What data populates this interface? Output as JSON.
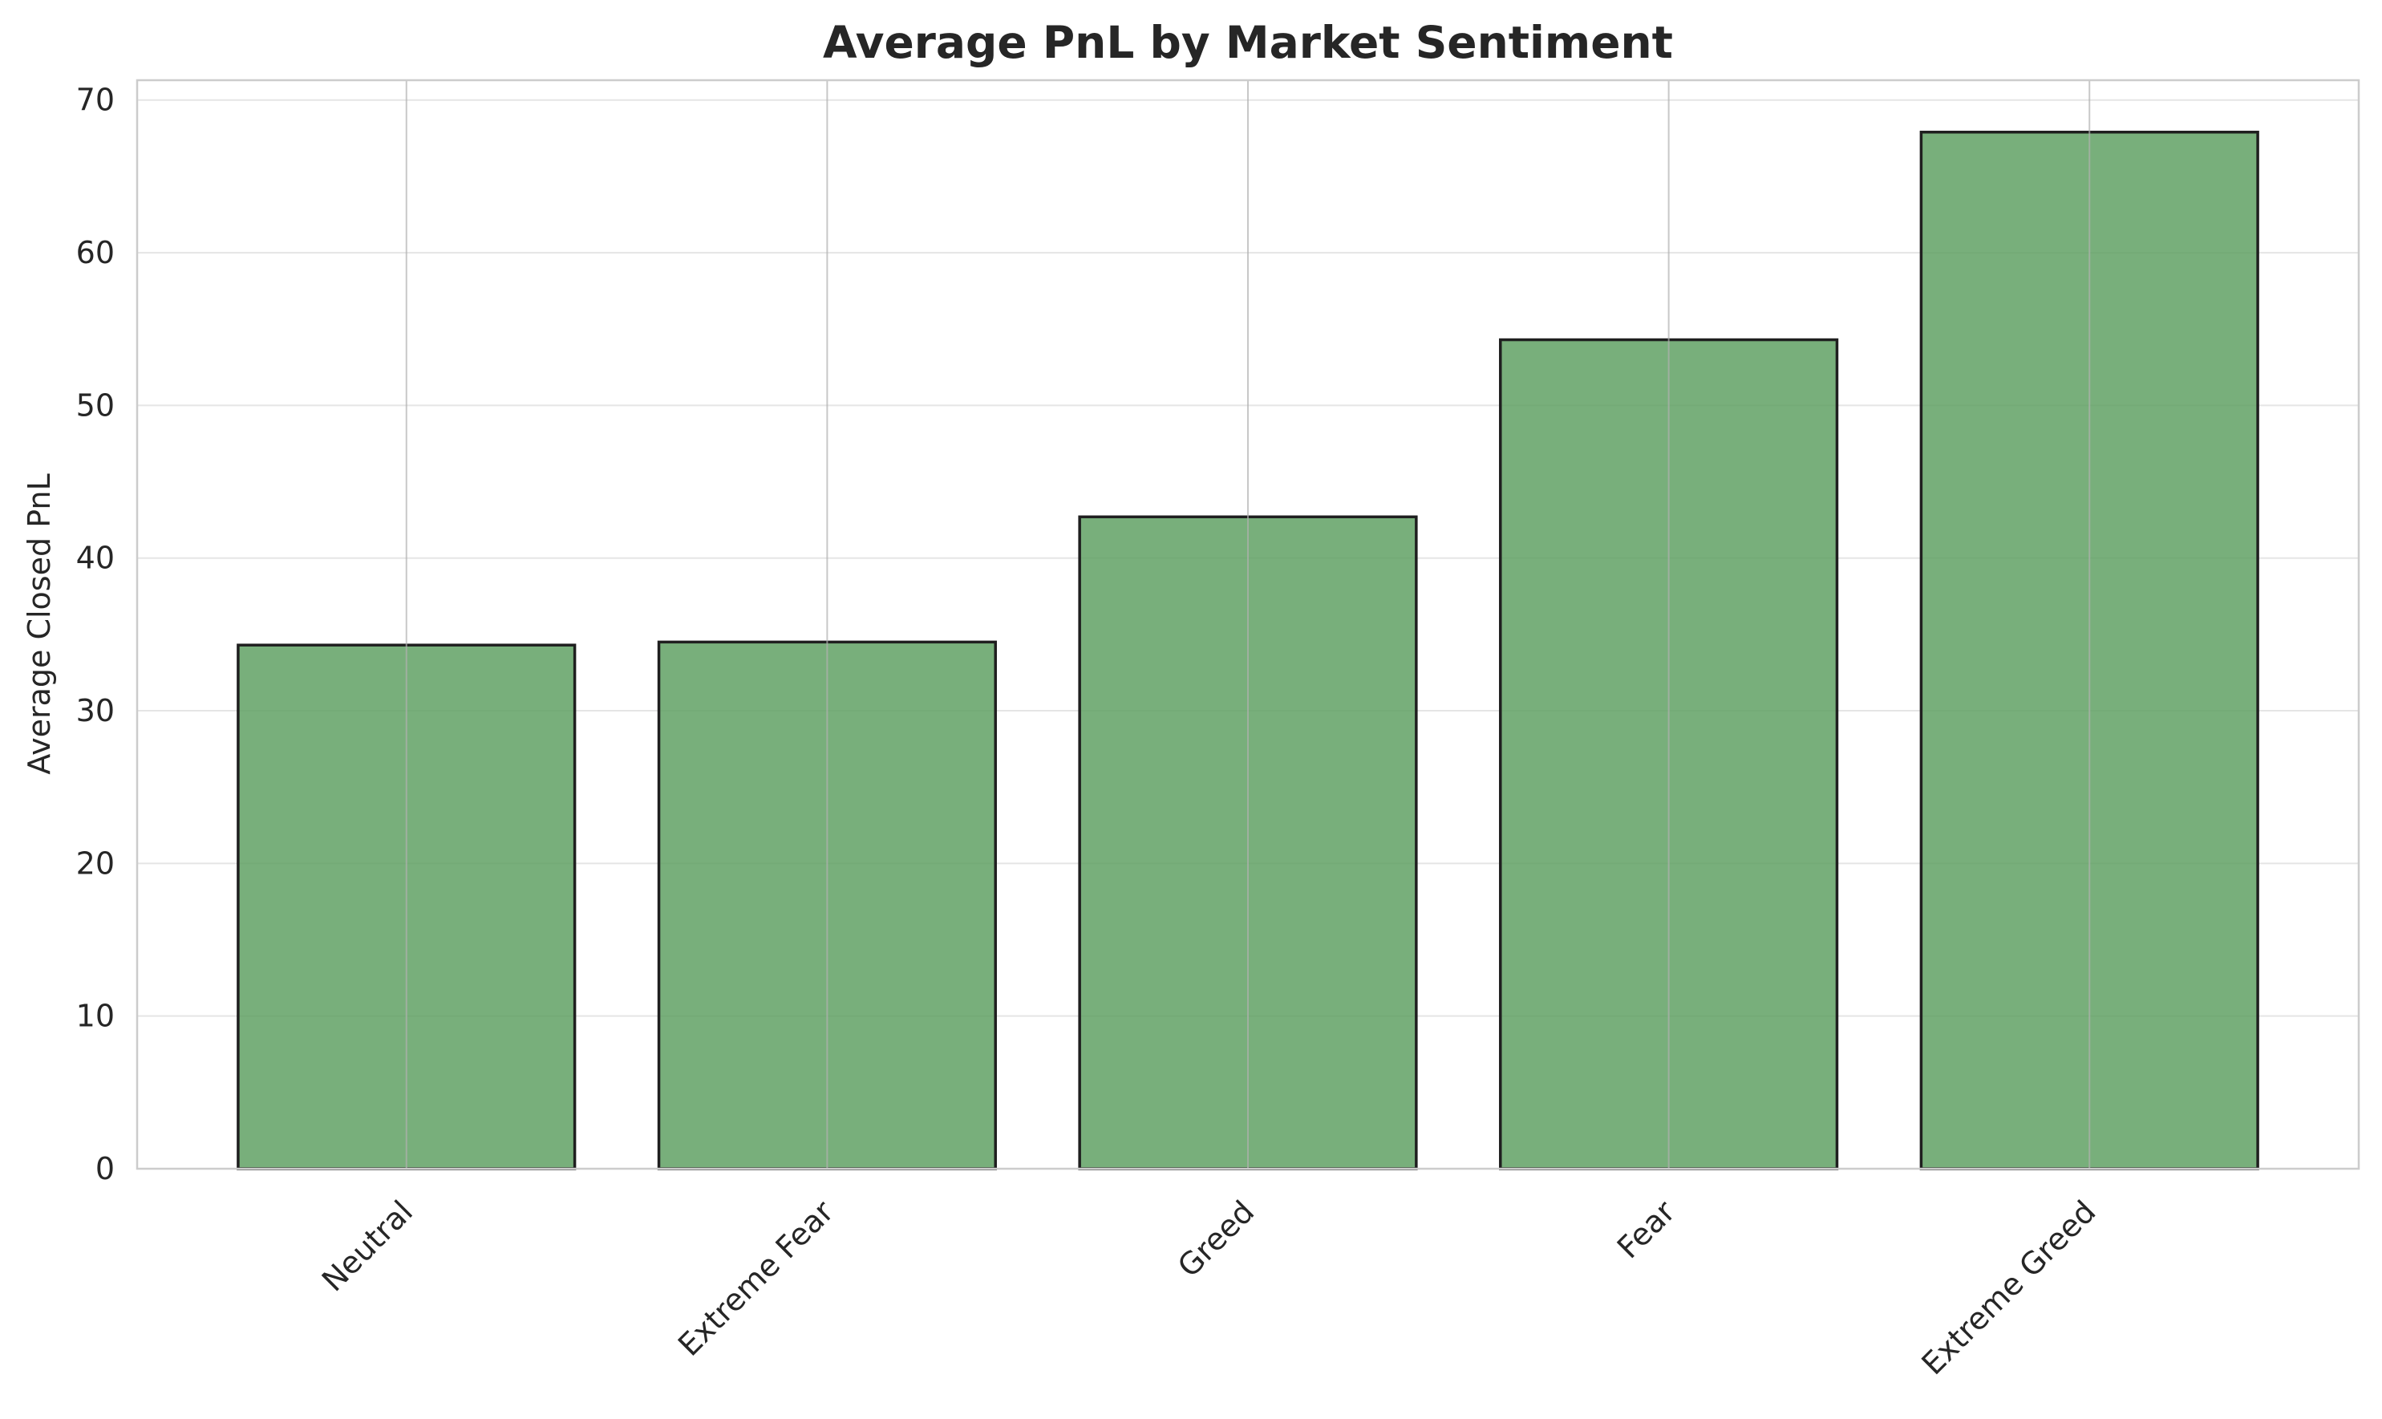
{
  "chart_data": {
    "type": "bar",
    "title": "Average PnL by Market Sentiment",
    "xlabel": "",
    "ylabel": "Average Closed PnL",
    "categories": [
      "Neutral",
      "Extreme Fear",
      "Greed",
      "Fear",
      "Extreme Greed"
    ],
    "values": [
      34.3,
      34.5,
      42.7,
      54.3,
      67.9
    ],
    "ylim": [
      0,
      71.3
    ],
    "yticks": [
      0,
      10,
      20,
      30,
      40,
      50,
      60,
      70
    ],
    "grid": true,
    "legend": "none",
    "x_tick_rotation": "45 degrees",
    "colors": {
      "bar_fill": "#5a9e5e",
      "bar_edge": "#1f1f1f",
      "grid": "#e5e5e5",
      "spine": "#cccccc",
      "text": "#262626",
      "background": "#ffffff"
    }
  }
}
